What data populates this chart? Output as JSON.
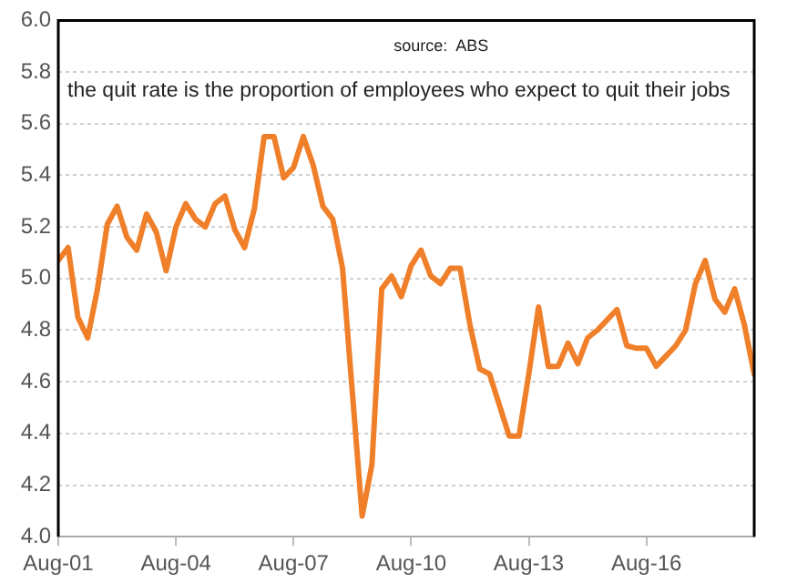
{
  "chart_data": {
    "type": "line",
    "annotations": [
      "source:  ABS",
      "the quit rate is the proportion of employees who expect to quit their jobs"
    ],
    "x": [
      "2001-08",
      "2001-11",
      "2002-02",
      "2002-05",
      "2002-08",
      "2002-11",
      "2003-02",
      "2003-05",
      "2003-08",
      "2003-11",
      "2004-02",
      "2004-05",
      "2004-08",
      "2004-11",
      "2005-02",
      "2005-05",
      "2005-08",
      "2005-11",
      "2006-02",
      "2006-05",
      "2006-08",
      "2006-11",
      "2007-02",
      "2007-05",
      "2007-08",
      "2007-11",
      "2008-02",
      "2008-05",
      "2008-08",
      "2008-11",
      "2009-02",
      "2009-05",
      "2009-08",
      "2009-11",
      "2010-02",
      "2010-05",
      "2010-08",
      "2010-11",
      "2011-02",
      "2011-05",
      "2011-08",
      "2011-11",
      "2012-02",
      "2012-05",
      "2012-08",
      "2012-11",
      "2013-02",
      "2013-05",
      "2013-08",
      "2013-11",
      "2014-02",
      "2014-05",
      "2014-08",
      "2014-11",
      "2015-02",
      "2015-05",
      "2015-08",
      "2015-11",
      "2016-02",
      "2016-05",
      "2016-08",
      "2016-11",
      "2017-02",
      "2017-05",
      "2017-08",
      "2017-11",
      "2018-02",
      "2018-05",
      "2018-08",
      "2018-11",
      "2019-02",
      "2019-05"
    ],
    "series": [
      {
        "color": "#f07f2a",
        "values": [
          5.07,
          5.12,
          4.85,
          4.77,
          4.96,
          5.21,
          5.28,
          5.16,
          5.11,
          5.25,
          5.18,
          5.03,
          5.2,
          5.29,
          5.23,
          5.2,
          5.29,
          5.32,
          5.19,
          5.12,
          5.27,
          5.55,
          5.55,
          5.39,
          5.43,
          5.55,
          5.44,
          5.28,
          5.23,
          5.04,
          4.56,
          4.08,
          4.28,
          4.96,
          5.01,
          4.93,
          5.05,
          5.11,
          5.01,
          4.98,
          5.04,
          5.04,
          4.82,
          4.65,
          4.63,
          4.51,
          4.39,
          4.39,
          4.63,
          4.89,
          4.66,
          4.66,
          4.75,
          4.67,
          4.77,
          4.8,
          4.84,
          4.88,
          4.74,
          4.73,
          4.73,
          4.66,
          4.7,
          4.74,
          4.8,
          4.98,
          5.07,
          4.92,
          4.87,
          4.96,
          4.82,
          4.63
        ]
      }
    ],
    "xlim": [
      "2001-08",
      "2019-05"
    ],
    "xticks": [
      {
        "value": "2001-08",
        "label": "Aug-01"
      },
      {
        "value": "2004-08",
        "label": "Aug-04"
      },
      {
        "value": "2007-08",
        "label": "Aug-07"
      },
      {
        "value": "2010-08",
        "label": "Aug-10"
      },
      {
        "value": "2013-08",
        "label": "Aug-13"
      },
      {
        "value": "2016-08",
        "label": "Aug-16"
      }
    ],
    "ylim": [
      4.0,
      6.0
    ],
    "yticks": [
      {
        "value": 4.0,
        "label": "4.0"
      },
      {
        "value": 4.2,
        "label": "4.2"
      },
      {
        "value": 4.4,
        "label": "4.4"
      },
      {
        "value": 4.6,
        "label": "4.6"
      },
      {
        "value": 4.8,
        "label": "4.8"
      },
      {
        "value": 5.0,
        "label": "5.0"
      },
      {
        "value": 5.2,
        "label": "5.2"
      },
      {
        "value": 5.4,
        "label": "5.4"
      },
      {
        "value": 5.6,
        "label": "5.6"
      },
      {
        "value": 5.8,
        "label": "5.8"
      },
      {
        "value": 6.0,
        "label": "6.0"
      }
    ],
    "grid": "y",
    "legend": false,
    "marker": "none",
    "line_style": "solid"
  }
}
